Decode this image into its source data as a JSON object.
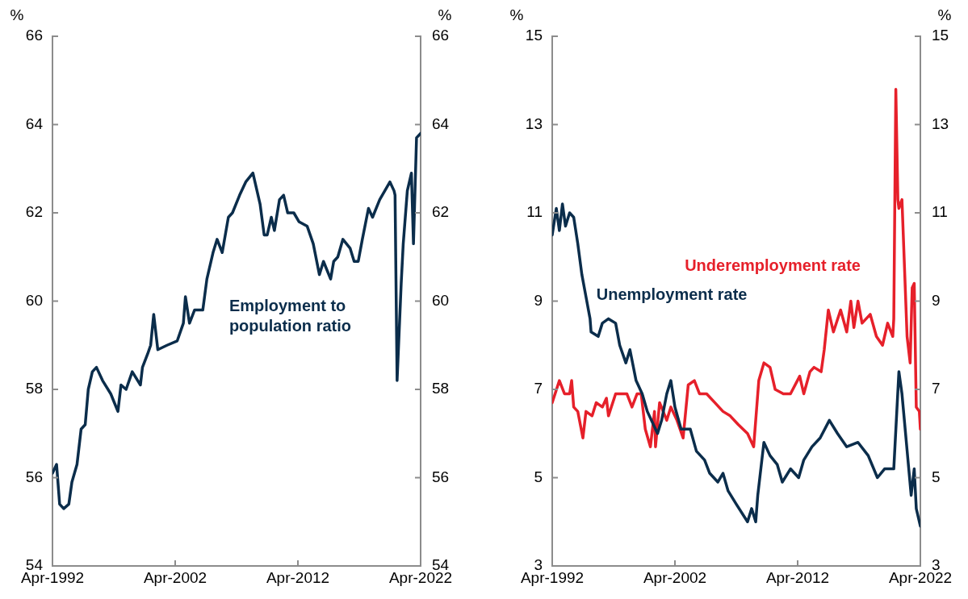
{
  "chart_data": [
    {
      "type": "line",
      "ylabel": "%",
      "y2label": "%",
      "xlim": [
        "1992-04",
        "2022-04"
      ],
      "xticks": [
        {
          "value": "1992-04",
          "label": "Apr-1992"
        },
        {
          "value": "2002-04",
          "label": "Apr-2002"
        },
        {
          "value": "2012-04",
          "label": "Apr-2012"
        },
        {
          "value": "2022-04",
          "label": "Apr-2022"
        }
      ],
      "ylim": [
        54,
        66
      ],
      "yticks": [
        54,
        56,
        58,
        60,
        62,
        64,
        66
      ],
      "y2lim": [
        54,
        66
      ],
      "y2ticks": [
        54,
        56,
        58,
        60,
        62,
        64,
        66
      ],
      "grid": false,
      "legend": false,
      "marker": "none",
      "line_style": "solid",
      "series": [
        {
          "name": "Employment to population ratio",
          "color": "#0b2d4b",
          "x": [
            "1992-04",
            "1992-08",
            "1992-11",
            "1993-03",
            "1993-08",
            "1993-11",
            "1994-04",
            "1994-08",
            "1994-12",
            "1995-03",
            "1995-07",
            "1995-11",
            "1996-05",
            "1997-01",
            "1997-08",
            "1997-11",
            "1998-04",
            "1998-10",
            "1999-06",
            "1999-08",
            "2000-01",
            "2000-04",
            "2000-07",
            "2000-11",
            "2001-08",
            "2002-06",
            "2002-12",
            "2003-02",
            "2003-06",
            "2003-11",
            "2004-07",
            "2004-11",
            "2005-05",
            "2005-09",
            "2006-02",
            "2006-08",
            "2006-12",
            "2007-07",
            "2008-01",
            "2008-08",
            "2009-03",
            "2009-07",
            "2009-10",
            "2010-02",
            "2010-05",
            "2010-10",
            "2011-02",
            "2011-06",
            "2011-12",
            "2012-05",
            "2013-01",
            "2013-07",
            "2014-01",
            "2014-05",
            "2014-12",
            "2015-03",
            "2015-07",
            "2015-12",
            "2016-07",
            "2016-11",
            "2017-03",
            "2017-07",
            "2018-01",
            "2018-05",
            "2018-12",
            "2019-05",
            "2019-10",
            "2020-02",
            "2020-03",
            "2020-05",
            "2020-09",
            "2020-11",
            "2021-03",
            "2021-07",
            "2021-09",
            "2021-12",
            "2022-04"
          ],
          "values": [
            56.1,
            56.3,
            55.4,
            55.3,
            55.4,
            55.9,
            56.3,
            57.1,
            57.2,
            58.0,
            58.4,
            58.5,
            58.2,
            57.9,
            57.5,
            58.1,
            58.0,
            58.4,
            58.1,
            58.5,
            58.8,
            59.0,
            59.7,
            58.9,
            59.0,
            59.1,
            59.5,
            60.1,
            59.5,
            59.8,
            59.8,
            60.5,
            61.1,
            61.4,
            61.1,
            61.9,
            62.0,
            62.4,
            62.7,
            62.9,
            62.2,
            61.5,
            61.5,
            61.9,
            61.6,
            62.3,
            62.4,
            62.0,
            62.0,
            61.8,
            61.7,
            61.3,
            60.6,
            60.9,
            60.5,
            60.9,
            61.0,
            61.4,
            61.2,
            60.9,
            60.9,
            61.4,
            62.1,
            61.9,
            62.3,
            62.5,
            62.7,
            62.5,
            62.4,
            58.2,
            60.4,
            61.3,
            62.5,
            62.9,
            61.3,
            63.7,
            63.8
          ]
        }
      ]
    },
    {
      "type": "line",
      "ylabel": "%",
      "y2label": "%",
      "xlim": [
        "1992-04",
        "2022-04"
      ],
      "xticks": [
        {
          "value": "1992-04",
          "label": "Apr-1992"
        },
        {
          "value": "2002-04",
          "label": "Apr-2002"
        },
        {
          "value": "2012-04",
          "label": "Apr-2012"
        },
        {
          "value": "2022-04",
          "label": "Apr-2022"
        }
      ],
      "ylim": [
        3,
        15
      ],
      "yticks": [
        3,
        5,
        7,
        9,
        11,
        13,
        15
      ],
      "y2lim": [
        3,
        15
      ],
      "y2ticks": [
        3,
        5,
        7,
        9,
        11,
        13,
        15
      ],
      "grid": false,
      "legend": false,
      "marker": "none",
      "line_style": "solid",
      "series": [
        {
          "name": "Unemployment rate",
          "color": "#0b2d4b",
          "x": [
            "1992-04",
            "1992-08",
            "1992-11",
            "1993-02",
            "1993-05",
            "1993-09",
            "1994-01",
            "1994-05",
            "1994-09",
            "1995-01",
            "1995-05",
            "1995-06",
            "1996-01",
            "1996-05",
            "1996-11",
            "1997-06",
            "1997-10",
            "1998-04",
            "1998-08",
            "1999-02",
            "1999-08",
            "2000-01",
            "2000-05",
            "2000-11",
            "2001-03",
            "2001-08",
            "2001-12",
            "2002-04",
            "2002-10",
            "2003-07",
            "2004-01",
            "2004-09",
            "2005-02",
            "2005-10",
            "2006-03",
            "2006-08",
            "2007-04",
            "2008-03",
            "2008-07",
            "2008-11",
            "2009-01",
            "2009-07",
            "2010-01",
            "2010-08",
            "2011-01",
            "2011-09",
            "2012-05",
            "2012-10",
            "2013-06",
            "2014-02",
            "2014-11",
            "2015-07",
            "2016-04",
            "2017-03",
            "2018-01",
            "2018-10",
            "2019-05",
            "2020-02",
            "2020-07",
            "2020-10",
            "2021-07",
            "2021-10",
            "2021-12",
            "2022-04"
          ],
          "values": [
            10.5,
            11.1,
            10.6,
            11.2,
            10.7,
            11.0,
            10.9,
            10.3,
            9.6,
            9.1,
            8.6,
            8.3,
            8.2,
            8.5,
            8.6,
            8.5,
            8.0,
            7.6,
            7.9,
            7.2,
            6.9,
            6.5,
            6.3,
            6.0,
            6.3,
            6.9,
            7.2,
            6.6,
            6.1,
            6.1,
            5.6,
            5.4,
            5.1,
            4.9,
            5.1,
            4.7,
            4.4,
            4.0,
            4.3,
            4.0,
            4.6,
            5.8,
            5.5,
            5.3,
            4.9,
            5.2,
            5.0,
            5.4,
            5.7,
            5.9,
            6.3,
            6.0,
            5.7,
            5.8,
            5.5,
            5.0,
            5.2,
            5.2,
            7.4,
            6.9,
            4.6,
            5.2,
            4.3,
            3.9
          ]
        },
        {
          "name": "Underemployment rate",
          "color": "#e6202a",
          "x": [
            "1992-04",
            "1992-11",
            "1993-04",
            "1993-09",
            "1993-11",
            "1994-01",
            "1994-05",
            "1994-10",
            "1995-01",
            "1995-07",
            "1995-11",
            "1996-05",
            "1996-09",
            "1996-11",
            "1997-06",
            "1997-12",
            "1998-05",
            "1998-10",
            "1999-03",
            "1999-07",
            "1999-11",
            "2000-04",
            "2000-08",
            "2000-09",
            "2001-01",
            "2001-08",
            "2001-12",
            "2002-06",
            "2002-12",
            "2003-05",
            "2003-11",
            "2004-04",
            "2004-11",
            "2005-07",
            "2006-03",
            "2006-10",
            "2007-06",
            "2008-03",
            "2008-09",
            "2009-02",
            "2009-07",
            "2010-01",
            "2010-06",
            "2011-02",
            "2011-09",
            "2012-06",
            "2012-10",
            "2013-04",
            "2013-08",
            "2014-03",
            "2014-06",
            "2014-10",
            "2015-03",
            "2015-10",
            "2016-04",
            "2016-08",
            "2016-11",
            "2017-03",
            "2017-07",
            "2018-03",
            "2018-09",
            "2019-03",
            "2019-08",
            "2020-01",
            "2020-02",
            "2020-04",
            "2020-06",
            "2020-07",
            "2020-10",
            "2021-03",
            "2021-06",
            "2021-08",
            "2021-10",
            "2021-12",
            "2022-03",
            "2022-04"
          ],
          "values": [
            6.7,
            7.2,
            6.9,
            6.9,
            7.2,
            6.6,
            6.5,
            5.9,
            6.5,
            6.4,
            6.7,
            6.6,
            6.8,
            6.4,
            6.9,
            6.9,
            6.9,
            6.6,
            6.9,
            6.9,
            6.1,
            5.7,
            6.5,
            5.7,
            6.7,
            6.3,
            6.6,
            6.3,
            5.9,
            7.1,
            7.2,
            6.9,
            6.9,
            6.7,
            6.5,
            6.4,
            6.2,
            6.0,
            5.7,
            7.2,
            7.6,
            7.5,
            7.0,
            6.9,
            6.9,
            7.3,
            6.9,
            7.4,
            7.5,
            7.4,
            7.9,
            8.8,
            8.3,
            8.8,
            8.3,
            9.0,
            8.4,
            9.0,
            8.5,
            8.7,
            8.2,
            8.0,
            8.5,
            8.2,
            8.6,
            13.8,
            11.3,
            11.1,
            11.3,
            8.2,
            7.6,
            9.3,
            9.4,
            6.6,
            6.5,
            6.1
          ]
        }
      ]
    }
  ]
}
